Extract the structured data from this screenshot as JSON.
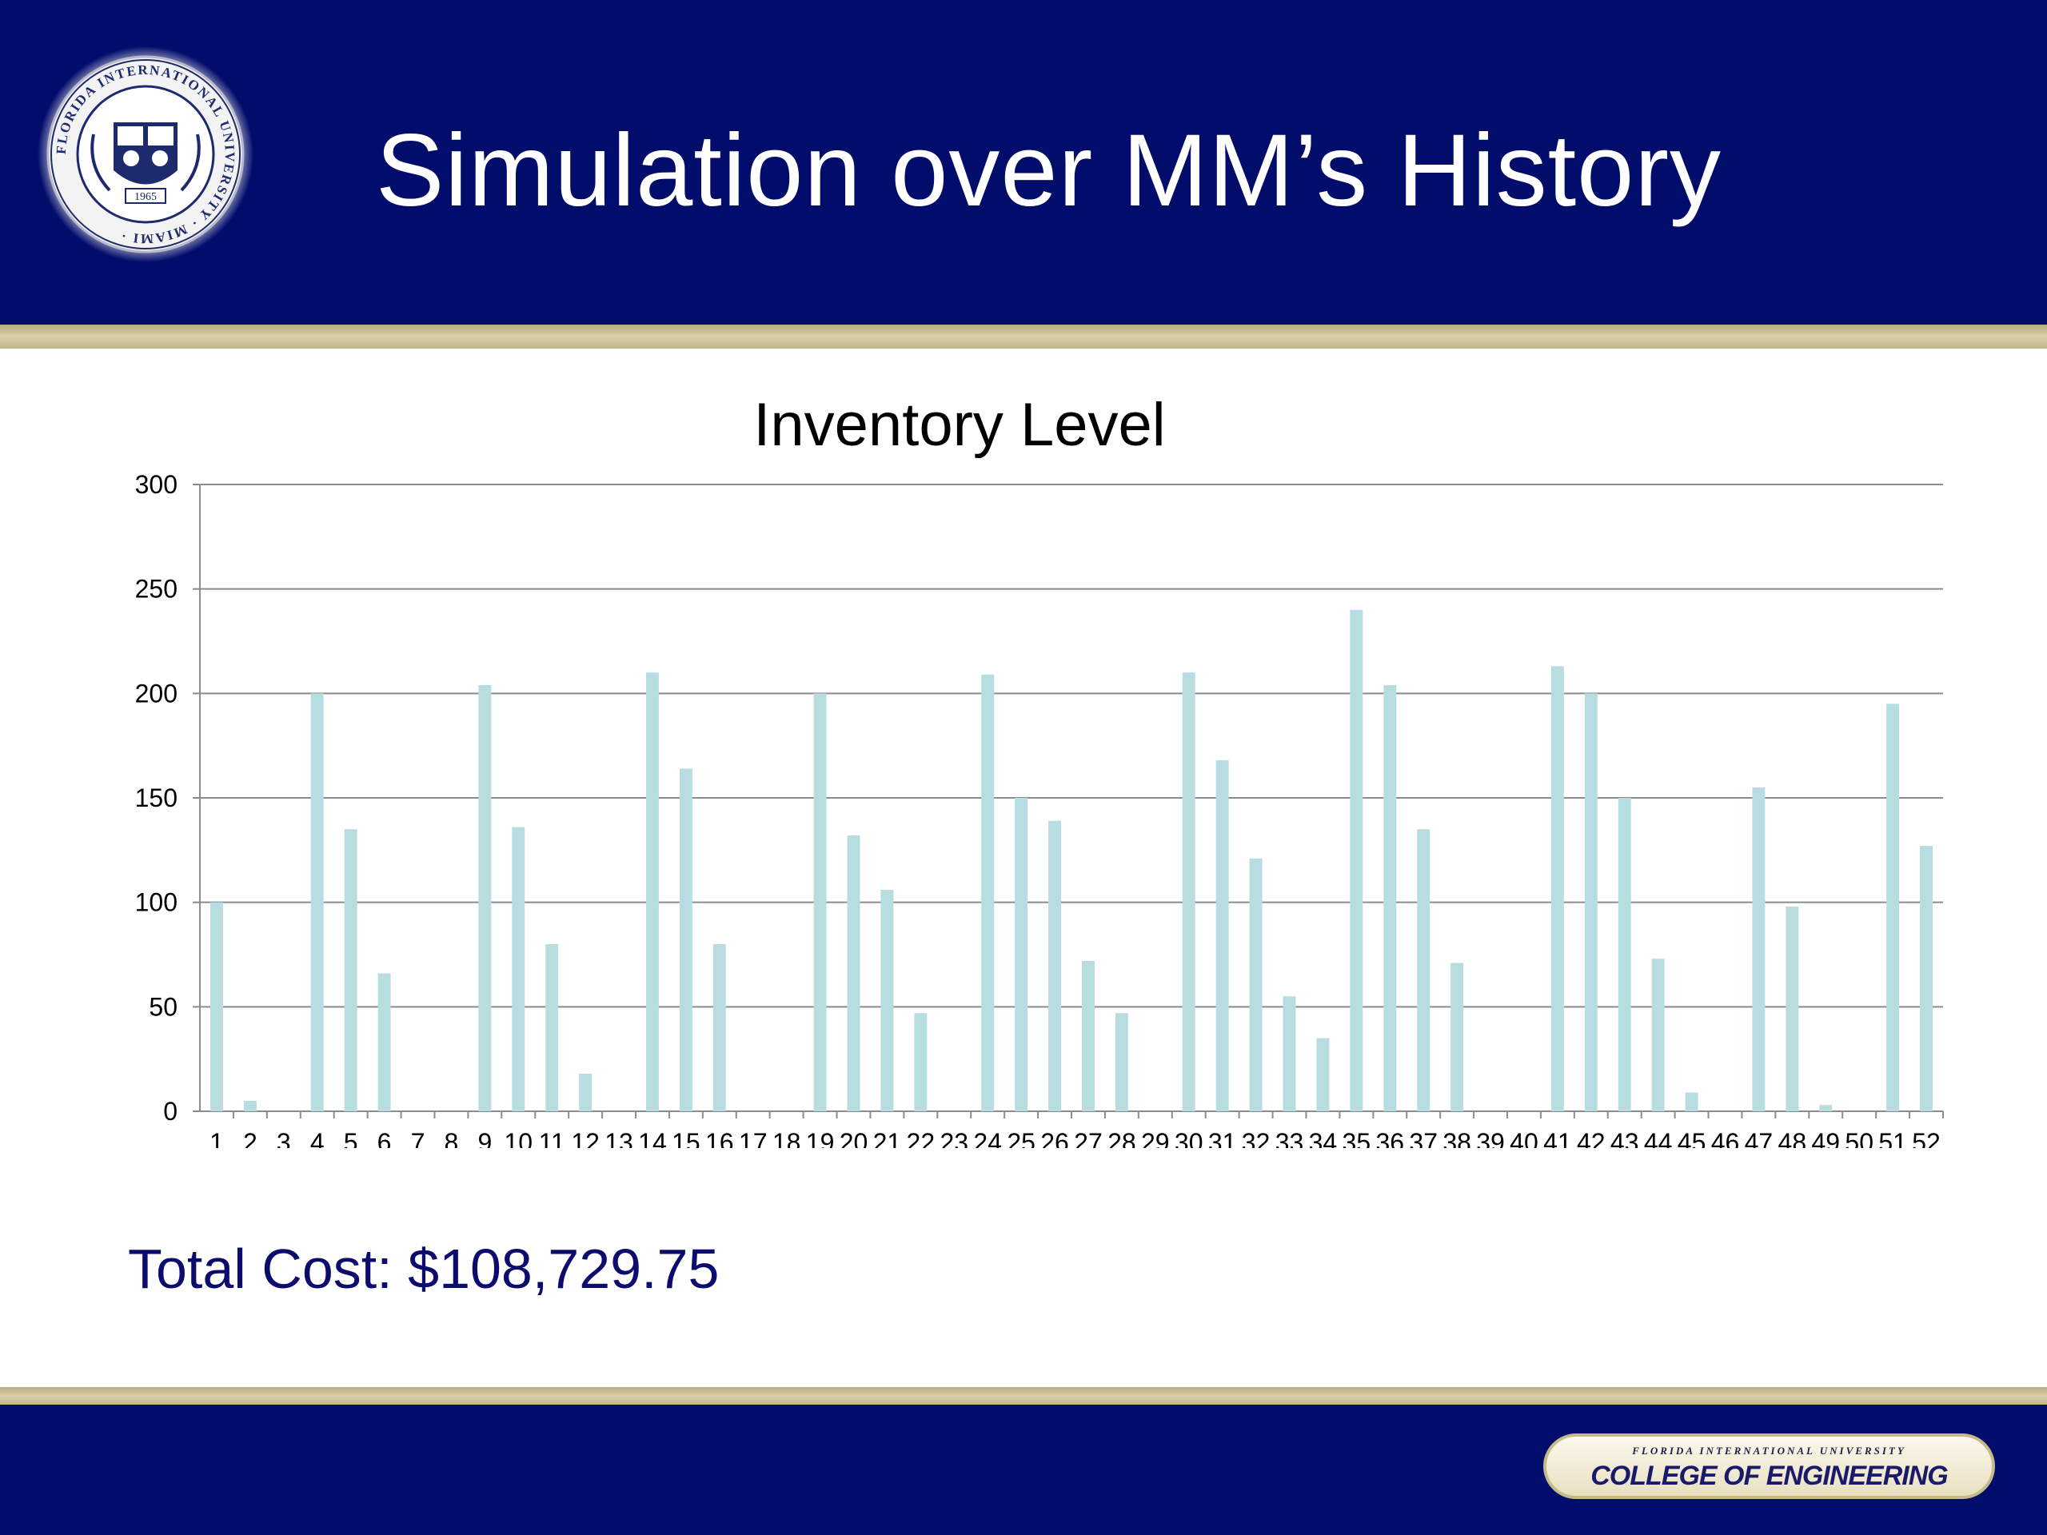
{
  "slide": {
    "title": "Simulation over MM’s History",
    "total_cost": "Total Cost: $108,729.75"
  },
  "seal": {
    "ring_text": "FLORIDA INTERNATIONAL UNIVERSITY · MIAMI ·",
    "year": "1965"
  },
  "footer": {
    "badge_top": "FLORIDA INTERNATIONAL UNIVERSITY",
    "badge_main": "COLLEGE OF ENGINEERING"
  },
  "colors": {
    "header_navy": "#020c6b",
    "gold": "#d0c49a",
    "bar": "#b8dde0",
    "gridline": "#8c8c8c",
    "total_cost_text": "#0c0c6e"
  },
  "chart_data": {
    "type": "bar",
    "title": "Inventory Level",
    "xlabel": "",
    "ylabel": "",
    "ylim": [
      0,
      300
    ],
    "yticks": [
      0,
      50,
      100,
      150,
      200,
      250,
      300
    ],
    "grid": true,
    "legend": "none",
    "categories": [
      "1",
      "2",
      "3",
      "4",
      "5",
      "6",
      "7",
      "8",
      "9",
      "10",
      "11",
      "12",
      "13",
      "14",
      "15",
      "16",
      "17",
      "18",
      "19",
      "20",
      "21",
      "22",
      "23",
      "24",
      "25",
      "26",
      "27",
      "28",
      "29",
      "30",
      "31",
      "32",
      "33",
      "34",
      "35",
      "36",
      "37",
      "38",
      "39",
      "40",
      "41",
      "42",
      "43",
      "44",
      "45",
      "46",
      "47",
      "48",
      "49",
      "50",
      "51",
      "52"
    ],
    "values": [
      100,
      5,
      0,
      200,
      135,
      66,
      0,
      0,
      204,
      136,
      80,
      18,
      0,
      210,
      164,
      80,
      0,
      0,
      200,
      132,
      106,
      47,
      0,
      209,
      150,
      139,
      72,
      47,
      0,
      210,
      168,
      121,
      55,
      35,
      240,
      204,
      135,
      71,
      0,
      0,
      213,
      200,
      150,
      73,
      9,
      0,
      155,
      98,
      3,
      0,
      195,
      127
    ]
  }
}
